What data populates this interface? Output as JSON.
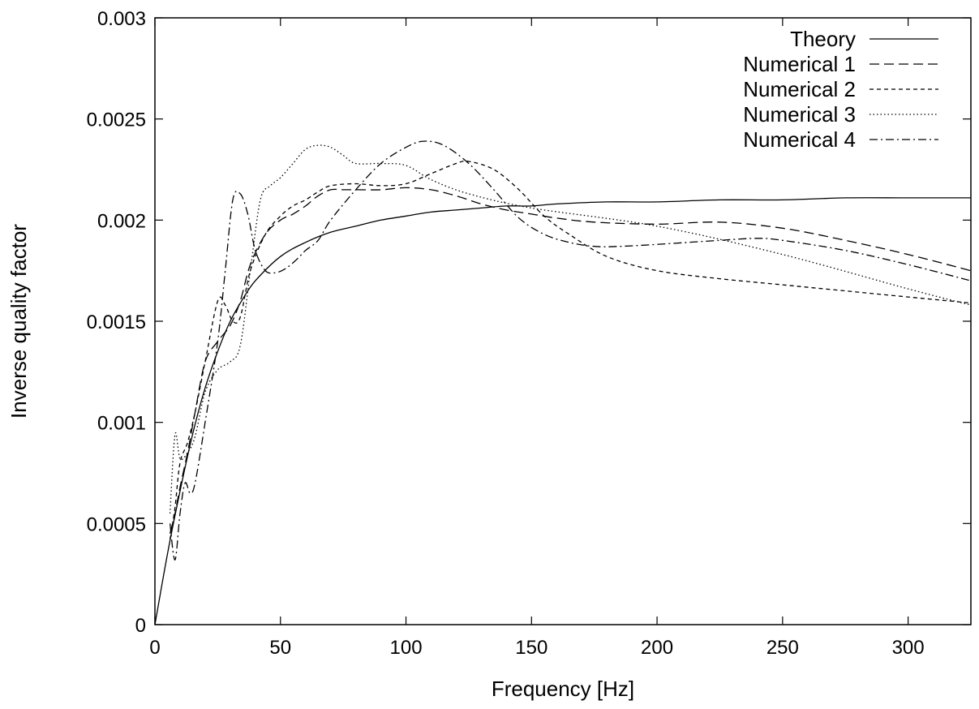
{
  "chart_data": {
    "type": "line",
    "title": "",
    "xlabel": "Frequency [Hz]",
    "ylabel": "Inverse quality factor",
    "xlim": [
      0,
      325
    ],
    "ylim": [
      0,
      0.003
    ],
    "x_ticks": [
      0,
      50,
      100,
      150,
      200,
      250,
      300
    ],
    "x_tick_labels": [
      "0",
      "50",
      "100",
      "150",
      "200",
      "250",
      "300"
    ],
    "y_ticks": [
      0,
      0.0005,
      0.001,
      0.0015,
      0.002,
      0.0025,
      0.003
    ],
    "y_tick_labels": [
      "0",
      "0.0005",
      "0.001",
      "0.0015",
      "0.002",
      "0.0025",
      "0.003"
    ],
    "grid": false,
    "legend_position": "top-right",
    "series": [
      {
        "name": "Theory",
        "dash": "solid",
        "x": [
          0,
          5,
          10,
          15,
          20,
          25,
          30,
          35,
          40,
          50,
          60,
          70,
          80,
          90,
          100,
          110,
          120,
          130,
          140,
          150,
          160,
          180,
          200,
          225,
          250,
          275,
          300,
          325
        ],
        "y": [
          0,
          0.00035,
          0.00066,
          0.00094,
          0.00117,
          0.00135,
          0.0015,
          0.00161,
          0.0017,
          0.00182,
          0.00189,
          0.00194,
          0.00197,
          0.002,
          0.00202,
          0.00204,
          0.00205,
          0.00206,
          0.00207,
          0.00207,
          0.00208,
          0.00209,
          0.00209,
          0.0021,
          0.0021,
          0.00211,
          0.00211,
          0.00211
        ]
      },
      {
        "name": "Numerical 1",
        "dash": "long-dash",
        "x": [
          6,
          8,
          10,
          13,
          16,
          20,
          25,
          30,
          34,
          38,
          44,
          50,
          55,
          60,
          65,
          70,
          75,
          80,
          90,
          100,
          110,
          120,
          130,
          140,
          150,
          160,
          175,
          200,
          225,
          250,
          275,
          300,
          325
        ],
        "y": [
          0.00045,
          0.00055,
          0.00068,
          0.00085,
          0.00105,
          0.0013,
          0.0014,
          0.00148,
          0.0016,
          0.00178,
          0.00193,
          0.002,
          0.00203,
          0.00207,
          0.00212,
          0.00215,
          0.00215,
          0.00215,
          0.00215,
          0.00216,
          0.00215,
          0.00212,
          0.00208,
          0.00205,
          0.00203,
          0.00201,
          0.00199,
          0.00198,
          0.00199,
          0.00196,
          0.0019,
          0.00183,
          0.00175
        ]
      },
      {
        "name": "Numerical 2",
        "dash": "short-dash",
        "x": [
          6,
          8,
          10,
          13,
          16,
          20,
          25,
          28,
          31,
          34,
          38,
          44,
          50,
          55,
          60,
          65,
          70,
          80,
          90,
          100,
          110,
          120,
          125,
          135,
          145,
          155,
          165,
          180,
          200,
          225,
          250,
          275,
          300,
          325
        ],
        "y": [
          0.00042,
          0.00058,
          0.0008,
          0.0009,
          0.00105,
          0.0013,
          0.0016,
          0.00158,
          0.0015,
          0.00152,
          0.00175,
          0.00193,
          0.00202,
          0.00207,
          0.0021,
          0.00214,
          0.00217,
          0.00218,
          0.00217,
          0.00218,
          0.00223,
          0.00228,
          0.00229,
          0.00225,
          0.00215,
          0.00202,
          0.00193,
          0.00182,
          0.00175,
          0.00171,
          0.00168,
          0.00165,
          0.00162,
          0.00159
        ]
      },
      {
        "name": "Numerical 3",
        "dash": "dotted",
        "x": [
          6,
          8,
          10,
          13,
          16,
          20,
          25,
          30,
          34,
          38,
          42,
          46,
          50,
          55,
          60,
          65,
          70,
          75,
          80,
          90,
          100,
          110,
          125,
          150,
          200,
          250,
          300,
          325
        ],
        "y": [
          0.00055,
          0.00094,
          0.00082,
          0.00085,
          0.00093,
          0.00115,
          0.00126,
          0.0013,
          0.00138,
          0.00175,
          0.0021,
          0.00217,
          0.00221,
          0.00228,
          0.00235,
          0.00237,
          0.00236,
          0.00232,
          0.00228,
          0.00228,
          0.00227,
          0.0022,
          0.00213,
          0.00206,
          0.00197,
          0.00183,
          0.00166,
          0.00158
        ]
      },
      {
        "name": "Numerical 4",
        "dash": "dash-dot",
        "x": [
          6,
          8,
          10,
          12,
          14,
          16,
          20,
          25,
          28,
          31,
          34,
          37,
          40,
          44,
          48,
          52,
          56,
          60,
          65,
          70,
          80,
          90,
          100,
          107,
          115,
          125,
          135,
          145,
          155,
          165,
          175,
          185,
          200,
          225,
          240,
          250,
          275,
          300,
          325
        ],
        "y": [
          0.0005,
          0.00032,
          0.00055,
          0.0007,
          0.00065,
          0.0007,
          0.001,
          0.0014,
          0.00175,
          0.0021,
          0.00213,
          0.00203,
          0.00185,
          0.00175,
          0.00174,
          0.00176,
          0.0018,
          0.00185,
          0.0019,
          0.002,
          0.00215,
          0.00228,
          0.00236,
          0.00239,
          0.00237,
          0.00228,
          0.00215,
          0.00201,
          0.00193,
          0.00189,
          0.00187,
          0.00187,
          0.00188,
          0.0019,
          0.00191,
          0.0019,
          0.00185,
          0.00178,
          0.0017
        ]
      }
    ]
  }
}
